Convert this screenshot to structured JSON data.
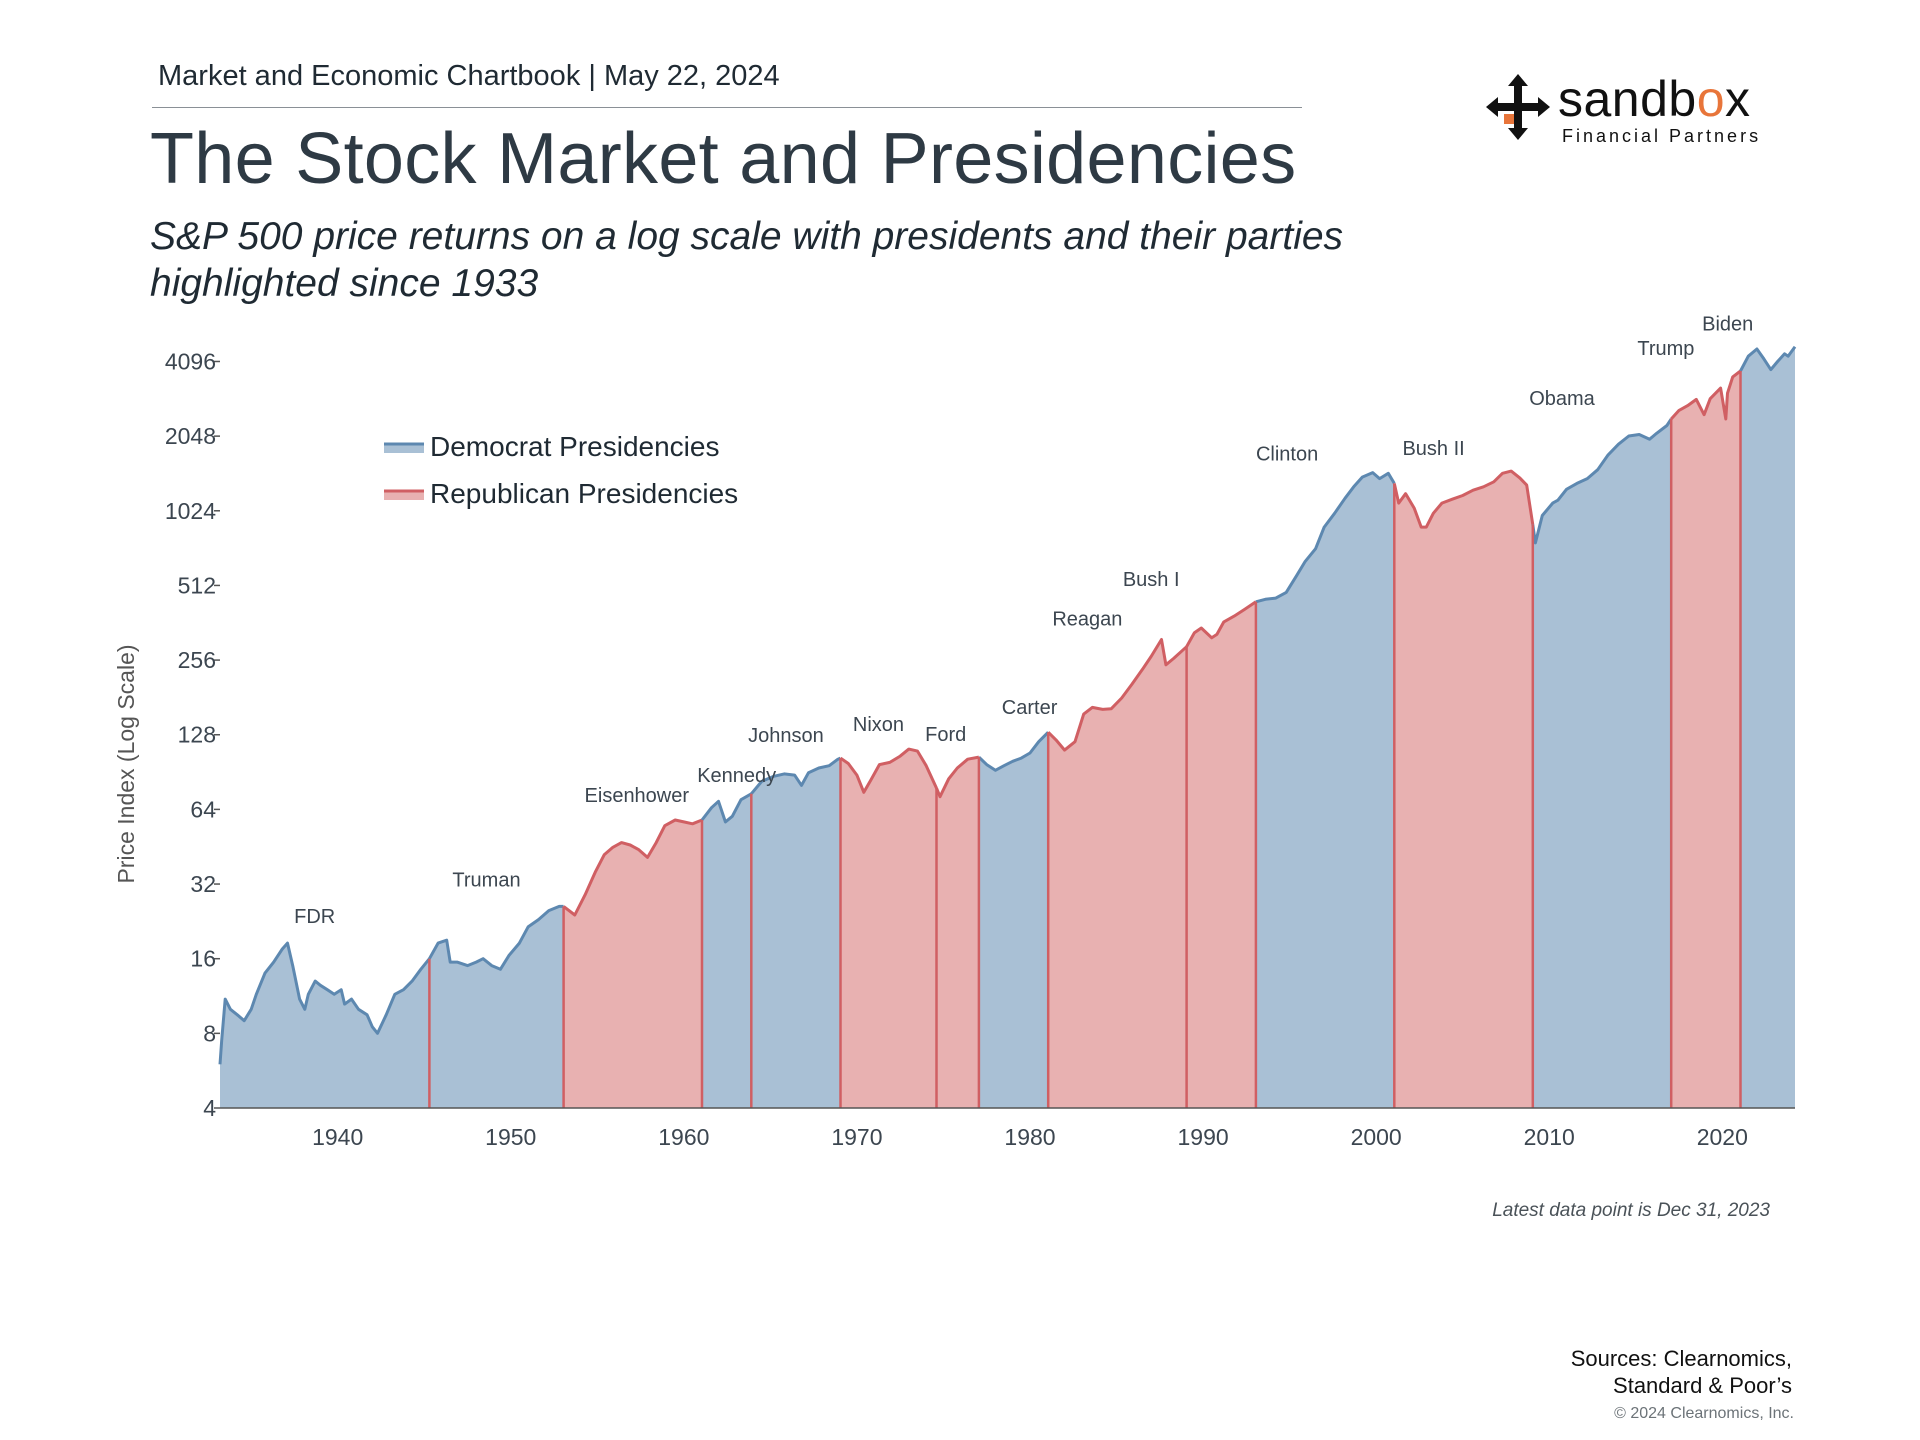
{
  "header": {
    "kicker": "Market and Economic Chartbook | May 22, 2024",
    "title": "The Stock Market and Presidencies",
    "subtitle": "S&P 500 price returns on a log scale with presidents and their parties highlighted since 1933"
  },
  "logo": {
    "word_left": "sandb",
    "word_o": "o",
    "word_right": "x",
    "tagline": "Financial Partners",
    "icon": "arrows-cross-icon",
    "accent": "#e8753a"
  },
  "colors": {
    "democrat_fill": "#a9c0d5",
    "democrat_line": "#5d88b0",
    "republican_fill": "#e8b1b1",
    "republican_line": "#d05f63"
  },
  "chart_data": {
    "type": "area",
    "ylabel": "Price Index (Log Scale)",
    "yscale": "log2",
    "ylim": [
      4,
      5000
    ],
    "yticks": [
      4,
      8,
      16,
      32,
      64,
      128,
      256,
      512,
      1024,
      2048,
      4096
    ],
    "xlim": [
      1933.2,
      2024.2
    ],
    "xticks": [
      1940,
      1950,
      1960,
      1970,
      1980,
      1990,
      2000,
      2010,
      2020
    ],
    "grid": false,
    "legend": {
      "placement": "top-left",
      "entries": [
        {
          "label": "Democrat Presidencies",
          "party": "D"
        },
        {
          "label": "Republican Presidencies",
          "party": "R"
        }
      ]
    },
    "presidencies": [
      {
        "name": "FDR",
        "party": "D",
        "start": 1933.2,
        "end": 1945.3
      },
      {
        "name": "Truman",
        "party": "D",
        "start": 1945.3,
        "end": 1953.05
      },
      {
        "name": "Eisenhower",
        "party": "R",
        "start": 1953.05,
        "end": 1961.05
      },
      {
        "name": "Kennedy",
        "party": "D",
        "start": 1961.05,
        "end": 1963.9
      },
      {
        "name": "Johnson",
        "party": "D",
        "start": 1963.9,
        "end": 1969.05
      },
      {
        "name": "Nixon",
        "party": "R",
        "start": 1969.05,
        "end": 1974.6
      },
      {
        "name": "Ford",
        "party": "R",
        "start": 1974.6,
        "end": 1977.05
      },
      {
        "name": "Carter",
        "party": "D",
        "start": 1977.05,
        "end": 1981.05
      },
      {
        "name": "Reagan",
        "party": "R",
        "start": 1981.05,
        "end": 1989.05
      },
      {
        "name": "Bush I",
        "party": "R",
        "start": 1989.05,
        "end": 1993.05
      },
      {
        "name": "Clinton",
        "party": "D",
        "start": 1993.05,
        "end": 2001.05
      },
      {
        "name": "Bush II",
        "party": "R",
        "start": 2001.05,
        "end": 2009.05
      },
      {
        "name": "Obama",
        "party": "D",
        "start": 2009.05,
        "end": 2017.05
      },
      {
        "name": "Trump",
        "party": "R",
        "start": 2017.05,
        "end": 2021.05
      },
      {
        "name": "Biden",
        "party": "D",
        "start": 2021.05,
        "end": 2024.2
      }
    ],
    "series": [
      {
        "name": "S&P 500",
        "x": [
          1933.2,
          1933.3,
          1933.5,
          1933.8,
          1934.2,
          1934.6,
          1935.0,
          1935.3,
          1935.8,
          1936.3,
          1936.8,
          1937.1,
          1937.4,
          1937.8,
          1938.1,
          1938.3,
          1938.7,
          1939.0,
          1939.4,
          1939.8,
          1940.2,
          1940.4,
          1940.8,
          1941.2,
          1941.7,
          1942.0,
          1942.3,
          1942.8,
          1943.3,
          1943.8,
          1944.3,
          1944.8,
          1945.3,
          1945.8,
          1946.3,
          1946.5,
          1946.9,
          1947.5,
          1948.0,
          1948.4,
          1948.9,
          1949.4,
          1949.9,
          1950.5,
          1951.0,
          1951.6,
          1952.2,
          1952.8,
          1953.05,
          1953.7,
          1954.3,
          1954.9,
          1955.4,
          1955.9,
          1956.4,
          1956.9,
          1957.4,
          1957.9,
          1958.4,
          1958.9,
          1959.5,
          1960.0,
          1960.5,
          1961.05,
          1961.6,
          1962.0,
          1962.4,
          1962.8,
          1963.3,
          1963.9,
          1964.5,
          1965.2,
          1965.8,
          1966.4,
          1966.8,
          1967.2,
          1967.8,
          1968.4,
          1968.9,
          1969.05,
          1969.5,
          1970.0,
          1970.4,
          1970.8,
          1971.3,
          1971.9,
          1972.5,
          1973.0,
          1973.5,
          1974.0,
          1974.6,
          1974.8,
          1975.3,
          1975.8,
          1976.4,
          1977.05,
          1977.5,
          1978.0,
          1978.5,
          1979.0,
          1979.5,
          1980.0,
          1980.5,
          1981.05,
          1981.5,
          1982.0,
          1982.6,
          1983.1,
          1983.6,
          1984.2,
          1984.7,
          1985.3,
          1985.9,
          1986.5,
          1987.0,
          1987.6,
          1987.85,
          1988.3,
          1989.05,
          1989.5,
          1989.9,
          1990.5,
          1990.8,
          1991.2,
          1991.8,
          1992.4,
          1993.05,
          1993.6,
          1994.2,
          1994.8,
          1995.4,
          1995.9,
          1996.5,
          1997.0,
          1997.6,
          1998.2,
          1998.7,
          1999.2,
          1999.8,
          2000.2,
          2000.7,
          2001.05,
          2001.3,
          2001.7,
          2002.2,
          2002.6,
          2002.9,
          2003.3,
          2003.8,
          2004.4,
          2005.0,
          2005.6,
          2006.2,
          2006.8,
          2007.3,
          2007.8,
          2008.3,
          2008.7,
          2009.05,
          2009.2,
          2009.6,
          2010.2,
          2010.5,
          2011.0,
          2011.6,
          2012.2,
          2012.8,
          2013.4,
          2014.0,
          2014.6,
          2015.2,
          2015.8,
          2016.2,
          2016.8,
          2017.05,
          2017.5,
          2018.0,
          2018.5,
          2018.95,
          2019.3,
          2019.9,
          2020.2,
          2020.3,
          2020.6,
          2021.05,
          2021.5,
          2022.0,
          2022.4,
          2022.8,
          2023.2,
          2023.6,
          2023.8,
          2024.2
        ],
        "y": [
          6.0,
          7.5,
          11,
          10,
          9.5,
          9,
          10,
          11.5,
          14,
          15.5,
          17.5,
          18.5,
          15,
          11,
          10,
          11.5,
          13,
          12.5,
          12,
          11.5,
          12,
          10.5,
          11,
          10,
          9.5,
          8.5,
          8,
          9.5,
          11.5,
          12,
          13,
          14.5,
          16,
          18.5,
          19,
          15.5,
          15.5,
          15,
          15.5,
          16,
          15,
          14.5,
          16.5,
          18.5,
          21.5,
          23,
          25,
          26,
          26,
          24,
          29,
          36,
          42,
          45,
          47,
          46,
          44,
          41,
          47,
          55,
          58,
          57,
          56,
          58,
          65,
          69,
          57,
          60,
          70,
          74,
          83,
          87,
          89,
          88,
          80,
          90,
          94,
          96,
          102,
          103,
          98,
          88,
          75,
          84,
          97,
          99,
          105,
          112,
          110,
          96,
          78,
          72,
          85,
          94,
          102,
          104,
          97,
          92,
          96,
          100,
          103,
          108,
          120,
          131,
          122,
          111,
          120,
          155,
          165,
          162,
          163,
          180,
          205,
          235,
          265,
          310,
          245,
          260,
          290,
          330,
          345,
          315,
          325,
          365,
          385,
          410,
          440,
          450,
          455,
          480,
          560,
          640,
          720,
          880,
          1000,
          1150,
          1280,
          1400,
          1460,
          1380,
          1450,
          1320,
          1100,
          1200,
          1050,
          880,
          880,
          1000,
          1100,
          1140,
          1180,
          1240,
          1280,
          1340,
          1450,
          1480,
          1390,
          1300,
          900,
          760,
          980,
          1100,
          1130,
          1250,
          1320,
          1380,
          1500,
          1720,
          1900,
          2050,
          2080,
          1990,
          2100,
          2260,
          2400,
          2600,
          2720,
          2880,
          2500,
          2900,
          3200,
          2400,
          3050,
          3550,
          3750,
          4300,
          4600,
          4200,
          3800,
          4100,
          4400,
          4300,
          4700
        ]
      }
    ]
  }
}
